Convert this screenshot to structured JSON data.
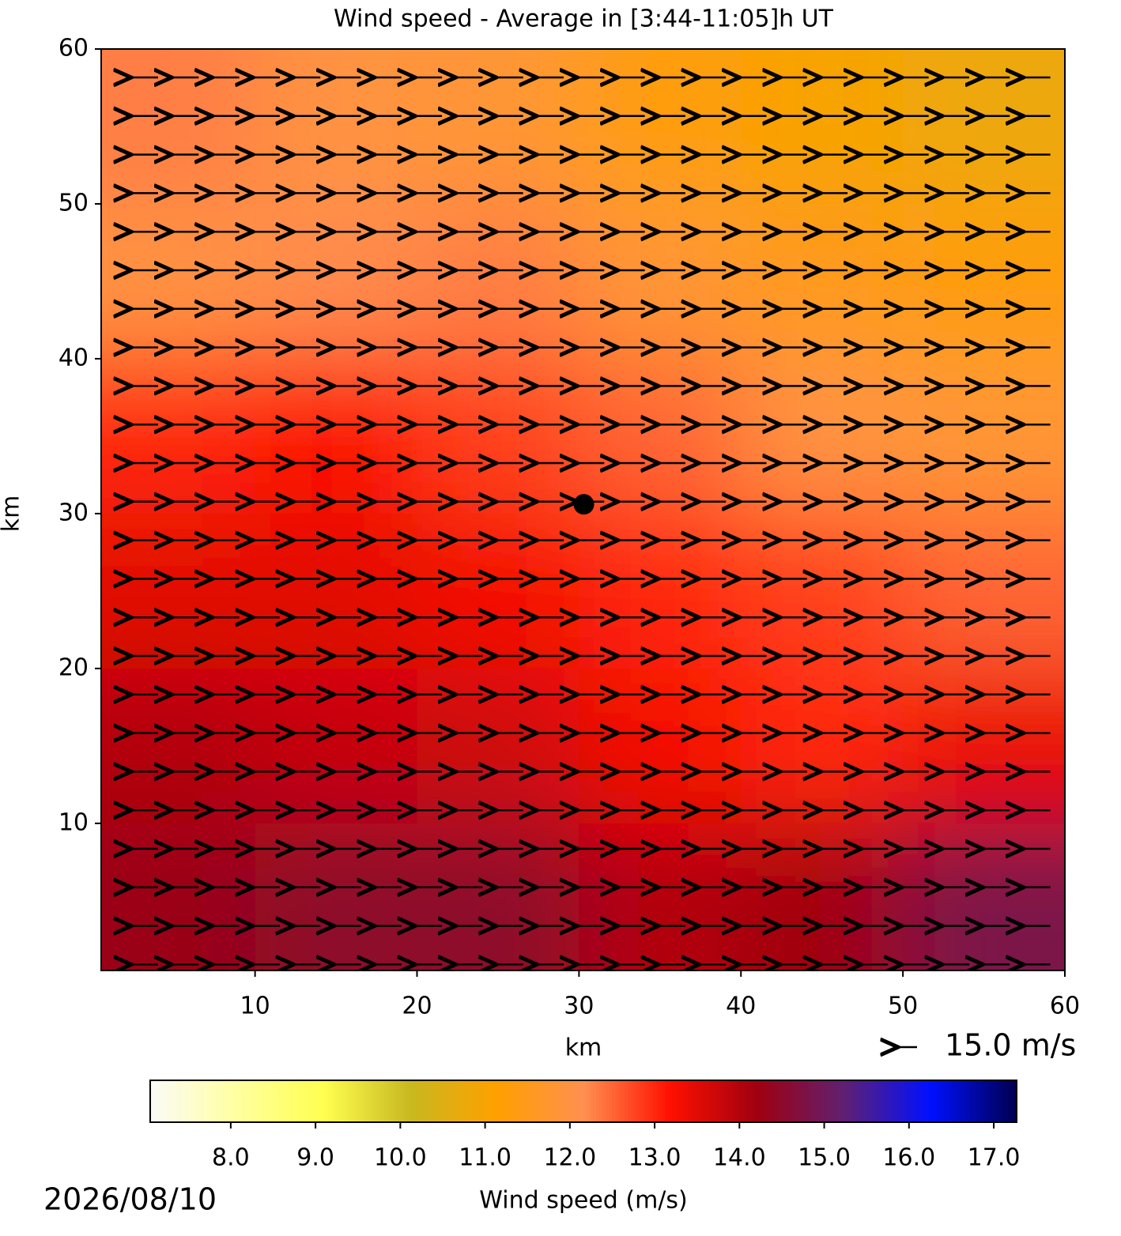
{
  "chart_data": {
    "type": "contourf",
    "title": "Wind speed - Average in [3:44-11:05]h UT",
    "xlabel": "km",
    "ylabel": "km",
    "xlim": [
      0.5,
      60
    ],
    "ylim": [
      0.5,
      60
    ],
    "xticks": [
      10,
      20,
      30,
      40,
      50,
      60
    ],
    "yticks": [
      10,
      20,
      30,
      40,
      50,
      60
    ],
    "field": {
      "x": [
        5,
        15,
        25,
        35,
        45,
        55
      ],
      "y": [
        55,
        45,
        35,
        25,
        15,
        5
      ],
      "values": [
        [
          12.3,
          12.0,
          11.8,
          11.3,
          11.0,
          10.8
        ],
        [
          12.0,
          12.2,
          12.3,
          11.8,
          11.5,
          11.3
        ],
        [
          13.0,
          13.2,
          12.8,
          12.5,
          12.0,
          11.8
        ],
        [
          13.5,
          13.5,
          13.3,
          13.0,
          12.8,
          12.5
        ],
        [
          14.0,
          13.8,
          13.7,
          13.3,
          13.0,
          13.4
        ],
        [
          14.3,
          14.5,
          14.5,
          14.0,
          14.2,
          14.8
        ]
      ]
    },
    "marker": {
      "x": 30.3,
      "y": 30.6
    },
    "quiver_key": "15.0 m/s",
    "colorbar": {
      "label": "Wind speed (m/s)",
      "clim": [
        7.05,
        17.27
      ],
      "colors": [
        "#fbfbf8",
        "#ffffa0",
        "#ffff50",
        "#c8b820",
        "#ffa000",
        "#ff9050",
        "#ff1000",
        "#a00010",
        "#602070",
        "#0010ff",
        "#000050"
      ],
      "ticks": [
        {
          "value": 8,
          "label": "8.0"
        },
        {
          "value": 9,
          "label": "9.0"
        },
        {
          "value": 10,
          "label": "10.0"
        },
        {
          "value": 11,
          "label": "11.0"
        },
        {
          "value": 12,
          "label": "12.0"
        },
        {
          "value": 13,
          "label": "13.0"
        },
        {
          "value": 14,
          "label": "14.0"
        },
        {
          "value": 15,
          "label": "15.0"
        },
        {
          "value": 16,
          "label": "16.0"
        },
        {
          "value": 17,
          "label": "17.0"
        }
      ]
    },
    "date": "2026/08/10"
  }
}
